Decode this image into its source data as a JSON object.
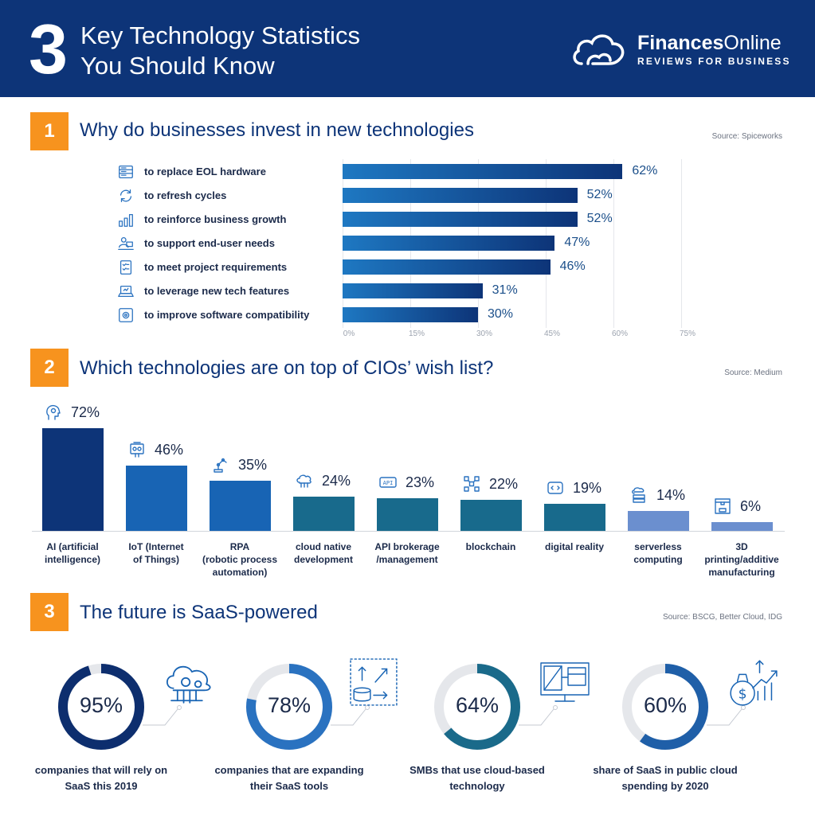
{
  "header": {
    "number": "3",
    "title_line1": "Key Technology Statistics",
    "title_line2": "You Should Know",
    "brand_bold": "Finances",
    "brand_light": "Online",
    "brand_tagline": "REVIEWS FOR BUSINESS"
  },
  "sections": [
    {
      "number": "1",
      "title": "Why do businesses invest in new technologies",
      "source": "Source: Spiceworks"
    },
    {
      "number": "2",
      "title": "Which technologies are on top of CIOs’ wish list?",
      "source": "Source: Medium"
    },
    {
      "number": "3",
      "title": "The future is SaaS-powered",
      "source": "Source: BSCG, Better Cloud, IDG"
    }
  ],
  "chart_data": [
    {
      "type": "bar",
      "orientation": "horizontal",
      "categories": [
        "to replace EOL hardware",
        "to refresh cycles",
        "to reinforce business growth",
        "to support end-user needs",
        "to meet project requirements",
        "to leverage new tech features",
        "to improve software compatibility"
      ],
      "values": [
        62,
        52,
        52,
        47,
        46,
        31,
        30
      ],
      "value_labels": [
        "62%",
        "52%",
        "52%",
        "47%",
        "46%",
        "31%",
        "30%"
      ],
      "icons": [
        "server-icon",
        "refresh-icon",
        "growth-chart-icon",
        "user-desk-icon",
        "checklist-icon",
        "laptop-icon",
        "gear-settings-icon"
      ],
      "xlim": [
        0,
        75
      ],
      "xticks": [
        "0%",
        "15%",
        "30%",
        "45%",
        "60%",
        "75%"
      ],
      "grid": true,
      "colors": {
        "start": "#1e78c2",
        "end": "#0d3478"
      }
    },
    {
      "type": "bar",
      "orientation": "vertical",
      "categories": [
        "AI (artificial intelligence)",
        "IoT (Internet of Things)",
        "RPA (robotic process automation)",
        "cloud native development",
        "API brokerage /management",
        "blockchain",
        "digital reality",
        "serverless computing",
        "3D printing/additive manufacturing"
      ],
      "category_lines": [
        [
          "AI (artificial",
          "intelligence)"
        ],
        [
          "IoT (Internet",
          "of Things)"
        ],
        [
          "RPA",
          "(robotic process",
          "automation)"
        ],
        [
          "cloud native",
          "development"
        ],
        [
          "API brokerage",
          "/management"
        ],
        [
          "blockchain"
        ],
        [
          "digital reality"
        ],
        [
          "serverless",
          "computing"
        ],
        [
          "3D printing/additive",
          "manufacturing"
        ]
      ],
      "values": [
        72,
        46,
        35,
        24,
        23,
        22,
        19,
        14,
        6
      ],
      "value_labels": [
        "72%",
        "46%",
        "35%",
        "24%",
        "23%",
        "22%",
        "19%",
        "14%",
        "6%"
      ],
      "icons": [
        "ai-head-icon",
        "iot-device-icon",
        "robot-arm-icon",
        "cloud-network-icon",
        "api-icon",
        "blockchain-icon",
        "vr-headset-icon",
        "server-cloud-icon",
        "3d-printer-icon"
      ],
      "colors": [
        "#0d3478",
        "#1864b4",
        "#1864b4",
        "#186a8c",
        "#186a8c",
        "#186a8c",
        "#186a8c",
        "#6b8fcf",
        "#6b8fcf"
      ]
    },
    {
      "type": "pie",
      "variant": "donut",
      "items": [
        {
          "value": 95,
          "label": "95%",
          "caption": [
            "companies that will rely on",
            "SaaS this 2019"
          ],
          "color": "#0d2e6e",
          "icon": "cloud-gear-icon"
        },
        {
          "value": 78,
          "label": "78%",
          "caption": [
            "companies that are expanding",
            "their SaaS tools"
          ],
          "color": "#2a72c0",
          "icon": "database-arrows-icon"
        },
        {
          "value": 64,
          "label": "64%",
          "caption": [
            "SMBs that use cloud-based",
            "technology"
          ],
          "color": "#1a6a8a",
          "icon": "monitor-layout-icon"
        },
        {
          "value": 60,
          "label": "60%",
          "caption": [
            "share of SaaS in public cloud",
            "spending by 2020"
          ],
          "color": "#1f5fa8",
          "icon": "money-growth-icon"
        }
      ],
      "track_color": "#e5e7eb"
    }
  ]
}
